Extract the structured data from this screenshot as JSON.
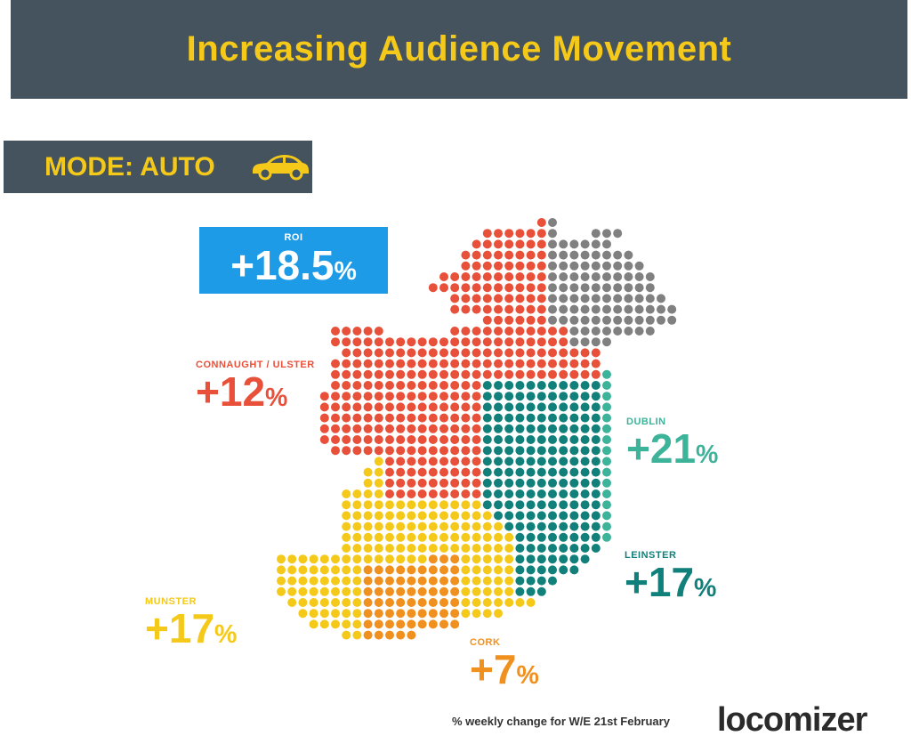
{
  "header": {
    "title": "Increasing Audience Movement"
  },
  "mode": {
    "label": "MODE: AUTO",
    "icon": "car-icon"
  },
  "roi": {
    "label": "ROI",
    "value": "+18.5",
    "unit": "%",
    "color": "#1e9be6"
  },
  "regions": {
    "connaught_ulster": {
      "label": "CONNAUGHT / ULSTER",
      "value": "+12",
      "unit": "%",
      "color": "#e8503a"
    },
    "dublin": {
      "label": "DUBLIN",
      "value": "+21",
      "unit": "%",
      "color": "#3db39a"
    },
    "leinster": {
      "label": "LEINSTER",
      "value": "+17",
      "unit": "%",
      "color": "#11807a"
    },
    "munster": {
      "label": "MUNSTER",
      "value": "+17",
      "unit": "%",
      "color": "#f5c91a"
    },
    "cork": {
      "label": "CORK",
      "value": "+7",
      "unit": "%",
      "color": "#f0901e"
    },
    "northern_ireland": {
      "color": "#808080"
    }
  },
  "footnote": "% weekly change for W/E 21st February",
  "logo": "locomizer"
}
